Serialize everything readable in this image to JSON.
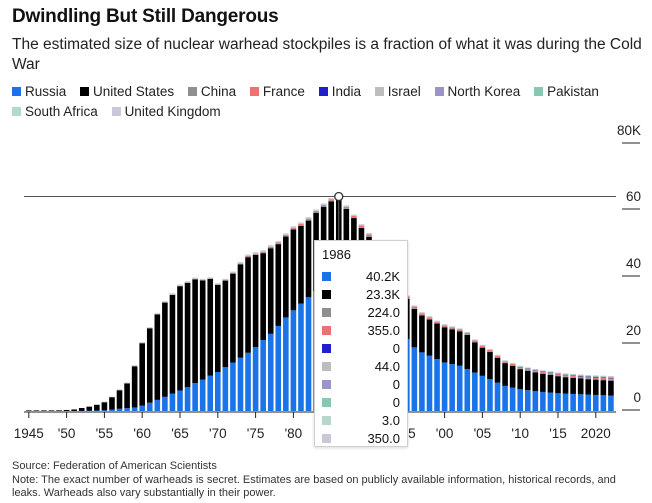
{
  "title": "Dwindling But Still Dangerous",
  "subtitle": "The estimated size of nuclear warhead stockpiles is a fraction of what it was during the Cold War",
  "legend": [
    {
      "name": "Russia",
      "color": "#1a73e8"
    },
    {
      "name": "United States",
      "color": "#000000"
    },
    {
      "name": "China",
      "color": "#8f8f8f"
    },
    {
      "name": "France",
      "color": "#f07070"
    },
    {
      "name": "India",
      "color": "#2020c8"
    },
    {
      "name": "Israel",
      "color": "#bdbdbd"
    },
    {
      "name": "North Korea",
      "color": "#9b94cc"
    },
    {
      "name": "Pakistan",
      "color": "#86c8b0"
    },
    {
      "name": "South Africa",
      "color": "#b5d8cc"
    },
    {
      "name": "United Kingdom",
      "color": "#c8c8d8"
    }
  ],
  "tooltip": {
    "year": "1986",
    "values": [
      "40.2K",
      "23.3K",
      "224.0",
      "355.0",
      "0",
      "44.0",
      "0",
      "0",
      "3.0",
      "350.0"
    ]
  },
  "footer": {
    "source": "Source: Federation of American Scientists",
    "note": "Note: The exact number of warheads is secret. Estimates are based on publicly available information, historical records, and leaks. Warheads also vary substantially in their power."
  },
  "chart_data": {
    "type": "bar",
    "stacked": true,
    "ylim": [
      0,
      80000
    ],
    "yticks": [
      "0",
      "20",
      "40",
      "60",
      "80K"
    ],
    "xticks": [
      "1945",
      "'50",
      "'55",
      "'60",
      "'65",
      "'70",
      "'75",
      "'80",
      "'85",
      "'90",
      "'95",
      "'00",
      "'05",
      "'10",
      "'15",
      "2020"
    ],
    "reference_line": 60000,
    "years": [
      1945,
      1946,
      1947,
      1948,
      1949,
      1950,
      1951,
      1952,
      1953,
      1954,
      1955,
      1956,
      1957,
      1958,
      1959,
      1960,
      1961,
      1962,
      1963,
      1964,
      1965,
      1966,
      1967,
      1968,
      1969,
      1970,
      1971,
      1972,
      1973,
      1974,
      1975,
      1976,
      1977,
      1978,
      1979,
      1980,
      1981,
      1982,
      1983,
      1984,
      1985,
      1986,
      1987,
      1988,
      1989,
      1990,
      1991,
      1992,
      1993,
      1994,
      1995,
      1996,
      1997,
      1998,
      1999,
      2000,
      2001,
      2002,
      2003,
      2004,
      2005,
      2006,
      2007,
      2008,
      2009,
      2010,
      2011,
      2012,
      2013,
      2014,
      2015,
      2016,
      2017,
      2018,
      2019,
      2020,
      2021,
      2022
    ],
    "series": [
      {
        "name": "Russia",
        "values": [
          0,
          0,
          0,
          0,
          1,
          5,
          25,
          50,
          120,
          150,
          200,
          426,
          660,
          869,
          1060,
          1605,
          2471,
          3322,
          4238,
          5221,
          6129,
          7089,
          8339,
          9399,
          10538,
          11643,
          13092,
          14478,
          15915,
          17385,
          19055,
          21205,
          23044,
          25393,
          27935,
          30062,
          32049,
          33952,
          35804,
          37431,
          39197,
          40159,
          38107,
          35804,
          33618,
          32000,
          30500,
          28000,
          26000,
          24000,
          21500,
          19000,
          17500,
          16500,
          15500,
          14500,
          14000,
          13500,
          12500,
          11500,
          10500,
          9500,
          8500,
          7500,
          7000,
          6500,
          6200,
          5900,
          5700,
          5500,
          5300,
          5200,
          5100,
          5000,
          4900,
          4800,
          4700,
          4600
        ]
      },
      {
        "name": "United States",
        "values": [
          2,
          9,
          13,
          50,
          170,
          299,
          438,
          841,
          1169,
          1703,
          2422,
          3692,
          5543,
          7345,
          12298,
          18638,
          22229,
          25540,
          28133,
          29463,
          31139,
          31175,
          30983,
          29561,
          28885,
          26008,
          25830,
          26516,
          27835,
          28537,
          27519,
          25914,
          25542,
          24418,
          24138,
          24104,
          23208,
          22886,
          23305,
          23459,
          23368,
          23317,
          22217,
          21792,
          21000,
          20000,
          18500,
          16500,
          14500,
          13000,
          12000,
          11500,
          11000,
          10800,
          10600,
          10500,
          10400,
          10300,
          10200,
          9000,
          8400,
          8100,
          7400,
          6800,
          6500,
          6000,
          5800,
          5600,
          5400,
          5300,
          5100,
          4900,
          4800,
          4700,
          4600,
          4550,
          4500,
          4450
        ]
      },
      {
        "name": "China",
        "values": [
          0,
          0,
          0,
          0,
          0,
          0,
          0,
          0,
          0,
          0,
          0,
          0,
          0,
          0,
          0,
          0,
          0,
          0,
          0,
          1,
          5,
          20,
          25,
          35,
          40,
          60,
          85,
          125,
          170,
          185,
          190,
          220,
          235,
          245,
          260,
          280,
          290,
          300,
          310,
          320,
          224,
          224,
          230,
          230,
          230,
          230,
          230,
          230,
          230,
          230,
          230,
          230,
          230,
          230,
          230,
          230,
          230,
          230,
          230,
          230,
          235,
          235,
          240,
          240,
          245,
          250,
          255,
          260,
          265,
          270,
          275,
          280,
          290,
          300,
          320,
          350,
          380,
          410
        ]
      },
      {
        "name": "France",
        "values": [
          0,
          0,
          0,
          0,
          0,
          0,
          0,
          0,
          0,
          0,
          0,
          0,
          0,
          0,
          0,
          0,
          0,
          0,
          0,
          4,
          32,
          36,
          36,
          36,
          36,
          36,
          45,
          70,
          116,
          145,
          188,
          212,
          228,
          235,
          235,
          250,
          274,
          279,
          280,
          280,
          355,
          355,
          420,
          410,
          505,
          505,
          505,
          505,
          505,
          505,
          500,
          450,
          450,
          450,
          350,
          350,
          350,
          350,
          350,
          350,
          350,
          350,
          350,
          300,
          300,
          300,
          300,
          300,
          300,
          300,
          300,
          300,
          300,
          300,
          290,
          290,
          290,
          290
        ]
      },
      {
        "name": "India",
        "values": [
          0,
          0,
          0,
          0,
          0,
          0,
          0,
          0,
          0,
          0,
          0,
          0,
          0,
          0,
          0,
          0,
          0,
          0,
          0,
          0,
          0,
          0,
          0,
          0,
          0,
          0,
          0,
          0,
          0,
          0,
          0,
          0,
          0,
          0,
          0,
          0,
          0,
          0,
          0,
          0,
          0,
          0,
          0,
          0,
          0,
          0,
          0,
          0,
          0,
          0,
          0,
          0,
          0,
          0,
          0,
          0,
          0,
          0,
          0,
          0,
          0,
          0,
          0,
          0,
          0,
          60,
          70,
          80,
          90,
          100,
          110,
          120,
          130,
          130,
          140,
          150,
          160,
          160
        ]
      },
      {
        "name": "Israel",
        "values": [
          0,
          0,
          0,
          0,
          0,
          0,
          0,
          0,
          0,
          0,
          0,
          0,
          0,
          0,
          0,
          0,
          0,
          0,
          0,
          0,
          0,
          0,
          2,
          4,
          6,
          8,
          11,
          15,
          20,
          25,
          30,
          31,
          31,
          31,
          31,
          31,
          40,
          40,
          40,
          44,
          44,
          44,
          44,
          44,
          44,
          44,
          44,
          44,
          44,
          44,
          44,
          44,
          60,
          60,
          60,
          60,
          60,
          60,
          60,
          60,
          80,
          80,
          80,
          80,
          80,
          80,
          80,
          80,
          80,
          80,
          80,
          80,
          90,
          90,
          90,
          90,
          90,
          90
        ]
      },
      {
        "name": "North Korea",
        "values": [
          0,
          0,
          0,
          0,
          0,
          0,
          0,
          0,
          0,
          0,
          0,
          0,
          0,
          0,
          0,
          0,
          0,
          0,
          0,
          0,
          0,
          0,
          0,
          0,
          0,
          0,
          0,
          0,
          0,
          0,
          0,
          0,
          0,
          0,
          0,
          0,
          0,
          0,
          0,
          0,
          0,
          0,
          0,
          0,
          0,
          0,
          0,
          0,
          0,
          0,
          0,
          0,
          0,
          0,
          0,
          0,
          0,
          0,
          0,
          0,
          0,
          0,
          0,
          0,
          0,
          0,
          0,
          0,
          0,
          0,
          0,
          0,
          10,
          10,
          20,
          30,
          40,
          50
        ]
      },
      {
        "name": "Pakistan",
        "values": [
          0,
          0,
          0,
          0,
          0,
          0,
          0,
          0,
          0,
          0,
          0,
          0,
          0,
          0,
          0,
          0,
          0,
          0,
          0,
          0,
          0,
          0,
          0,
          0,
          0,
          0,
          0,
          0,
          0,
          0,
          0,
          0,
          0,
          0,
          0,
          0,
          0,
          0,
          0,
          0,
          0,
          0,
          0,
          0,
          0,
          0,
          0,
          0,
          0,
          0,
          0,
          0,
          0,
          0,
          0,
          0,
          0,
          0,
          0,
          0,
          0,
          0,
          0,
          0,
          0,
          70,
          80,
          90,
          100,
          110,
          120,
          130,
          140,
          150,
          150,
          160,
          165,
          165
        ]
      },
      {
        "name": "South Africa",
        "values": [
          0,
          0,
          0,
          0,
          0,
          0,
          0,
          0,
          0,
          0,
          0,
          0,
          0,
          0,
          0,
          0,
          0,
          0,
          0,
          0,
          0,
          0,
          0,
          0,
          0,
          0,
          0,
          0,
          0,
          0,
          0,
          0,
          0,
          0,
          0,
          0,
          0,
          1,
          2,
          3,
          3,
          3,
          4,
          5,
          6,
          6,
          0,
          0,
          0,
          0,
          0,
          0,
          0,
          0,
          0,
          0,
          0,
          0,
          0,
          0,
          0,
          0,
          0,
          0,
          0,
          0,
          0,
          0,
          0,
          0,
          0,
          0,
          0,
          0,
          0,
          0,
          0,
          0
        ]
      },
      {
        "name": "United Kingdom",
        "values": [
          0,
          0,
          0,
          0,
          0,
          0,
          0,
          0,
          50,
          100,
          150,
          200,
          250,
          280,
          300,
          310,
          310,
          310,
          394,
          436,
          436,
          418,
          423,
          410,
          410,
          410,
          410,
          410,
          410,
          410,
          410,
          410,
          410,
          410,
          410,
          410,
          410,
          410,
          410,
          410,
          350,
          350,
          350,
          350,
          350,
          350,
          350,
          300,
          300,
          250,
          250,
          250,
          250,
          250,
          250,
          250,
          250,
          225,
          225,
          225,
          225,
          225,
          225,
          225,
          225,
          225,
          225,
          225,
          225,
          225,
          215,
          215,
          215,
          215,
          215,
          225,
          225,
          225
        ]
      }
    ]
  }
}
